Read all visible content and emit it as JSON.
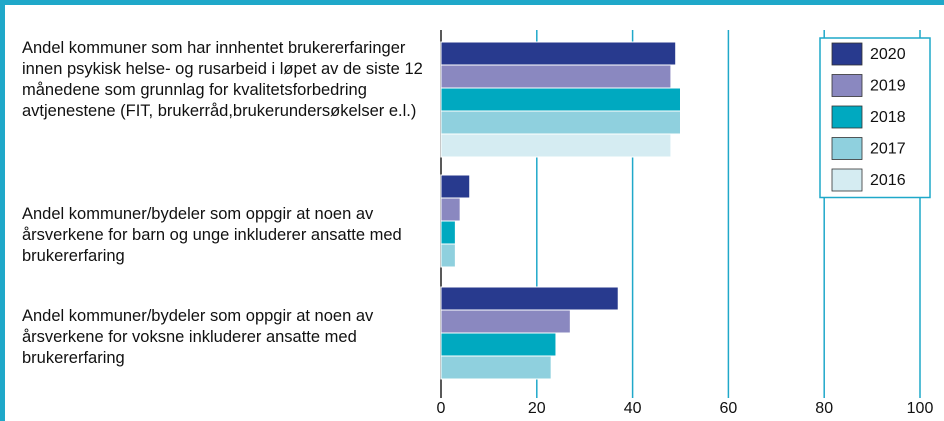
{
  "chart_data": {
    "type": "barh",
    "categories": [
      "Andel kommuner som har innhentet brukererfaringer innen psykisk helse- og rusarbeid i løpet av de siste 12 månedene som grunnlag for kvalitetsforbedring avtjenestene (FIT, brukerråd,brukerundersøkelser e.l.)",
      "Andel kommuner/bydeler som oppgir at noen av årsverkene for barn og unge inkluderer ansatte med brukererfaring",
      "Andel kommuner/bydeler som oppgir at noen av årsverkene for voksne inkluderer ansatte med brukererfaring"
    ],
    "series": [
      {
        "name": "2020",
        "color": "#283a8e",
        "values": [
          49,
          6,
          37
        ]
      },
      {
        "name": "2019",
        "color": "#8a88c0",
        "values": [
          48,
          4,
          27
        ]
      },
      {
        "name": "2018",
        "color": "#00a9c0",
        "values": [
          50,
          3,
          24
        ]
      },
      {
        "name": "2017",
        "color": "#8fd0de",
        "values": [
          50,
          3,
          23
        ]
      },
      {
        "name": "2016",
        "color": "#d5ecf2",
        "values": [
          48,
          null,
          null
        ]
      }
    ],
    "xlim": [
      0,
      100
    ],
    "xticks": [
      0,
      20,
      40,
      60,
      80,
      100
    ],
    "grid": true,
    "legend": "top-right"
  }
}
